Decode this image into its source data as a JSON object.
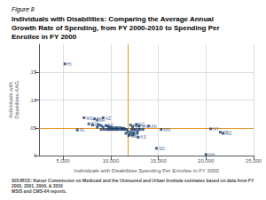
{
  "chart_data": {
    "type": "scatter",
    "subtitle": "Figure 8",
    "title": "Individuals with Disabilities: Comparing the Average Annual\nGrowth Rate of Spending, from FY 2000-2010 to Spending Per\nEnrollee in FY 2000",
    "x_label": "Individuals with Disabilities Spending Per Enrollee in FY 2000",
    "y_label": "Individuals with\nDisabilities AAG",
    "annotations": [
      "SOURCE: Kaiser Commission on Medicaid and the Uninsured and Urban Institute estimates based on data from FY 2000, 2001, 2009, & 2010\nMSIS and CMS-64 reports."
    ],
    "xlim": [
      2500,
      25000
    ],
    "ylim": [
      0,
      0.2
    ],
    "xticks": [
      {
        "value": 5000,
        "label": "5,000"
      },
      {
        "value": 10000,
        "label": "10,000"
      },
      {
        "value": 15000,
        "label": "15,000"
      },
      {
        "value": 20000,
        "label": "20,000"
      },
      {
        "value": 25000,
        "label": "25,000"
      }
    ],
    "yticks": [
      0,
      {
        "value": 0.05,
        "label": ".05"
      },
      {
        "value": 0.1,
        "label": ".10"
      },
      {
        "value": 0.15,
        "label": ".15"
      }
    ],
    "grid": true,
    "color": "#1a3f6f",
    "marker": "square",
    "reference_lines": [
      {
        "axis": "x",
        "value": 11800,
        "color": "#e8922a"
      },
      {
        "axis": "y",
        "value": 0.047,
        "color": "#e8922a"
      }
    ],
    "x": [
      5200,
      7200,
      8300,
      8600,
      9200,
      7700,
      8100,
      8700,
      9000,
      9500,
      9700,
      8600,
      9200,
      9800,
      10000,
      10200,
      10500,
      10700,
      11000,
      11200,
      11400,
      6500,
      9000,
      9300,
      9600,
      9800,
      10000,
      10200,
      10400,
      10600,
      10800,
      11100,
      11300,
      11500,
      11700,
      12100,
      12700,
      12300,
      13000,
      14000,
      12200,
      12400,
      12600,
      12900,
      13100,
      13400,
      11800,
      12100,
      12400,
      12800,
      11600,
      12000,
      12300,
      11900,
      12900,
      14800,
      15300,
      20500,
      21500,
      21800,
      20000
    ],
    "values": [
      0.165,
      0.068,
      0.066,
      0.064,
      0.068,
      0.057,
      0.055,
      0.056,
      0.054,
      0.054,
      0.053,
      0.051,
      0.051,
      0.051,
      0.051,
      0.05,
      0.05,
      0.05,
      0.05,
      0.049,
      0.049,
      0.046,
      0.047,
      0.047,
      0.047,
      0.047,
      0.047,
      0.047,
      0.047,
      0.047,
      0.047,
      0.047,
      0.047,
      0.047,
      0.047,
      0.055,
      0.056,
      0.052,
      0.053,
      0.053,
      0.047,
      0.047,
      0.047,
      0.047,
      0.047,
      0.047,
      0.043,
      0.042,
      0.041,
      0.042,
      0.04,
      0.038,
      0.037,
      0.036,
      0.033,
      0.013,
      0.047,
      0.048,
      0.042,
      0.04,
      0.002
    ],
    "labels": [
      "HI",
      "MS",
      "TN",
      "LA",
      "AZ",
      "SC",
      "GA",
      null,
      null,
      "NC",
      null,
      null,
      null,
      null,
      null,
      null,
      null,
      null,
      null,
      null,
      null,
      "AL",
      null,
      null,
      null,
      null,
      null,
      null,
      null,
      null,
      null,
      null,
      null,
      null,
      null,
      "MD",
      "DC",
      "VT",
      "WV",
      "AK",
      null,
      null,
      null,
      null,
      null,
      null,
      null,
      "DE",
      null,
      null,
      null,
      "MA",
      null,
      "ME",
      "KS",
      "SD",
      "MN",
      "NY",
      "CT",
      "ND",
      "NH"
    ]
  }
}
